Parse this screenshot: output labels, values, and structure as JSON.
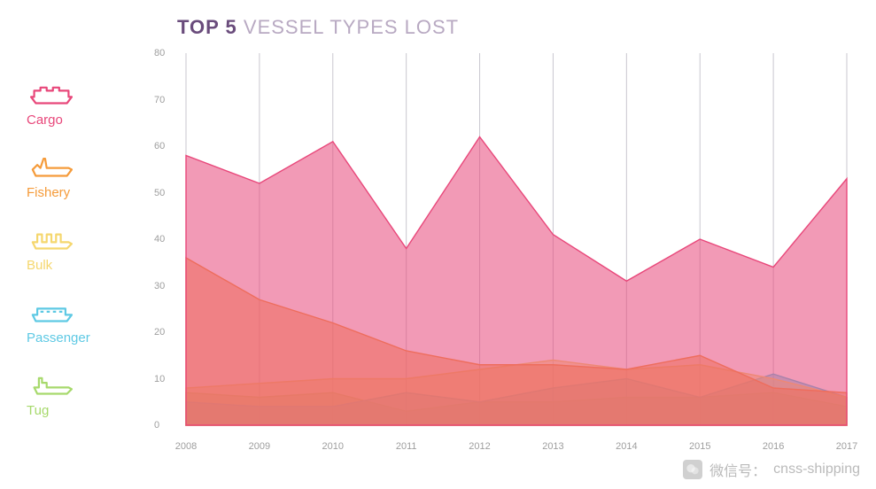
{
  "title": {
    "bold": "TOP 5",
    "light": "VESSEL TYPES LOST",
    "bold_color": "#6a4c7c",
    "light_color": "#b8a9c2",
    "fontsize": 22
  },
  "legend": [
    {
      "key": "cargo",
      "label": "Cargo",
      "color": "#e8477a",
      "icon": "cargo-ship"
    },
    {
      "key": "fishery",
      "label": "Fishery",
      "color": "#f59b3a",
      "icon": "fishing-ship"
    },
    {
      "key": "bulk",
      "label": "Bulk",
      "color": "#f5d76e",
      "icon": "bulk-ship"
    },
    {
      "key": "passenger",
      "label": "Passenger",
      "color": "#5ec9e4",
      "icon": "passenger-ship"
    },
    {
      "key": "tug",
      "label": "Tug",
      "color": "#a7d96c",
      "icon": "tug-ship"
    }
  ],
  "chart": {
    "type": "area",
    "overlap": true,
    "background_color": "#ffffff",
    "gridline_color": "#c9c7cf",
    "axis_label_color": "#9e9e9e",
    "axis_fontsize": 11,
    "fill_opacity": 0.55,
    "xlim": [
      2008,
      2017
    ],
    "ylim": [
      0,
      80
    ],
    "ytick_step": 10,
    "xtick_step": 1,
    "x_categories": [
      2008,
      2009,
      2010,
      2011,
      2012,
      2013,
      2014,
      2015,
      2016,
      2017
    ],
    "series": [
      {
        "key": "tug",
        "color": "#a7d96c",
        "values": [
          7,
          6,
          7,
          3,
          5,
          5,
          6,
          6,
          7,
          4
        ]
      },
      {
        "key": "passenger",
        "color": "#5ec9e4",
        "values": [
          5,
          4,
          4,
          7,
          5,
          8,
          10,
          6,
          11,
          6
        ]
      },
      {
        "key": "bulk",
        "color": "#f5d76e",
        "values": [
          8,
          9,
          10,
          10,
          12,
          14,
          12,
          13,
          10,
          6
        ]
      },
      {
        "key": "fishery",
        "color": "#f59b3a",
        "values": [
          36,
          27,
          22,
          16,
          13,
          13,
          12,
          15,
          8,
          7
        ]
      },
      {
        "key": "cargo",
        "color": "#e8477a",
        "values": [
          58,
          52,
          61,
          38,
          62,
          41,
          31,
          40,
          34,
          53
        ]
      }
    ]
  },
  "watermark": {
    "label": "微信号：",
    "handle": "cnss-shipping",
    "color": "rgba(130,130,130,0.55)"
  }
}
